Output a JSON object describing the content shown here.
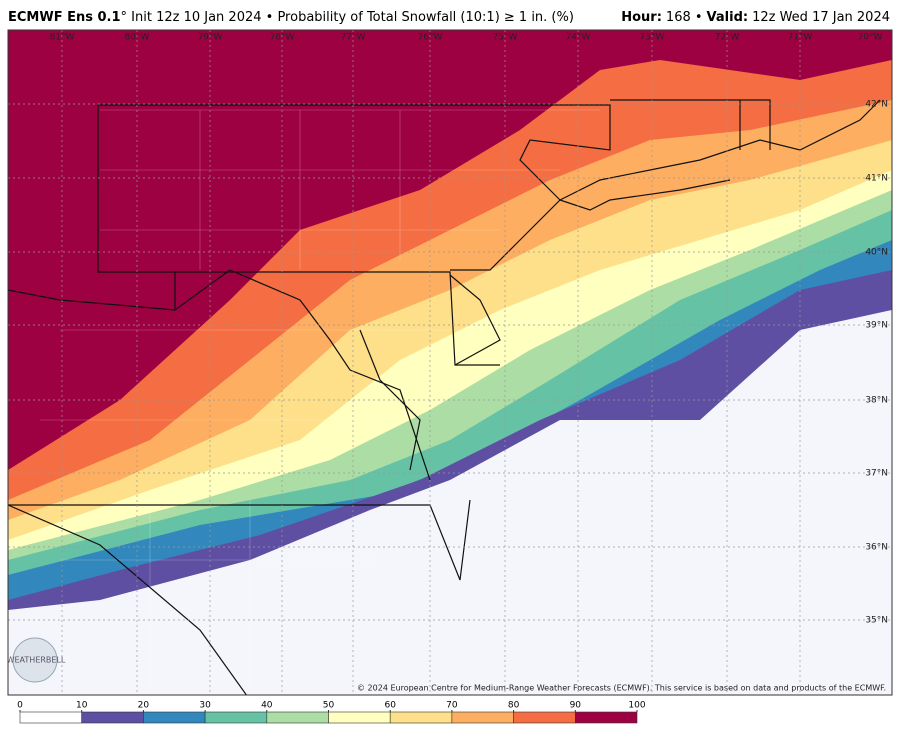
{
  "header": {
    "model": "ECMWF Ens 0.1",
    "description": "° Init 12z 10 Jan 2024 • Probability of Total Snowfall (10:1) ≥ 1 in. (%)",
    "hour_label": "Hour:",
    "hour": "168 •",
    "valid_label": "Valid:",
    "valid": "12z Wed 17 Jan 2024"
  },
  "map": {
    "longitudes": [
      "81°W",
      "80°W",
      "79°W",
      "78°W",
      "77°W",
      "76°W",
      "75°W",
      "74°W",
      "73°W",
      "72°W",
      "71°W",
      "70°W"
    ],
    "latitudes": [
      "42°N",
      "41°N",
      "40°N",
      "39°N",
      "38°N",
      "37°N",
      "36°N",
      "35°N"
    ],
    "watermark": "WEATHERBELL",
    "copyright": "© 2024 European Centre for Medium-Range Weather Forecasts (ECMWF). This service is based on data and products of the ECMWF."
  },
  "colorbar": {
    "ticks": [
      0,
      10,
      20,
      30,
      40,
      50,
      60,
      70,
      80,
      90,
      100
    ],
    "colors": [
      "#ffffff",
      "#5e4fa2",
      "#3288bd",
      "#66c2a5",
      "#abdda4",
      "#ffffbf",
      "#fee08b",
      "#fdae61",
      "#f46d43",
      "#9e0142"
    ]
  }
}
